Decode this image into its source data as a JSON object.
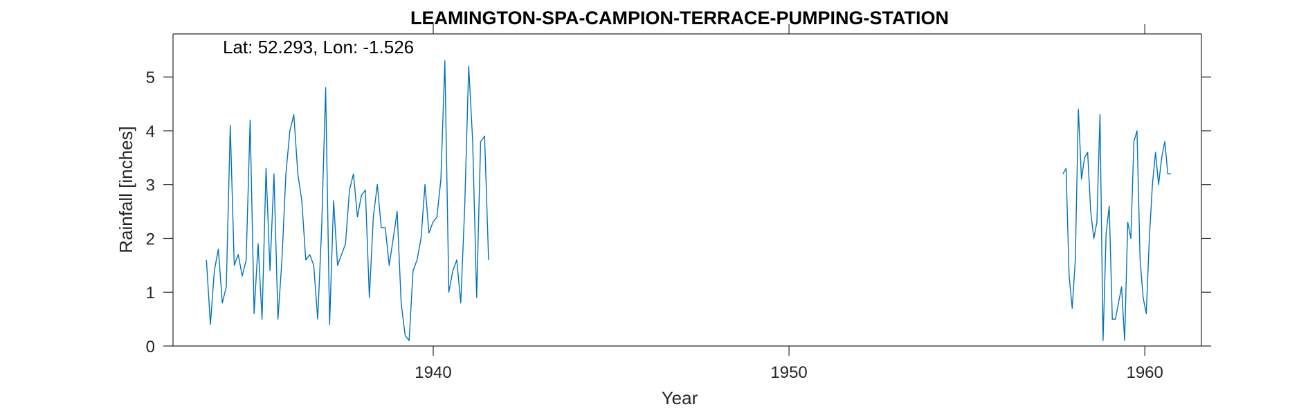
{
  "chart_data": {
    "type": "line",
    "title": "LEAMINGTON-SPA-CAMPION-TERRACE-PUMPING-STATION",
    "annotation": "Lat: 52.293, Lon: -1.526",
    "xlabel": "Year",
    "ylabel": "Rainfall [inches]",
    "xlim": [
      1932.9,
      1961.3
    ],
    "ylim": [
      0,
      5.8
    ],
    "x_ticks": [
      {
        "value": 1940,
        "label": "1940"
      },
      {
        "value": 1950,
        "label": "1950"
      },
      {
        "value": 1960,
        "label": "1960"
      }
    ],
    "y_ticks": [
      {
        "value": 0,
        "label": "0"
      },
      {
        "value": 1,
        "label": "1"
      },
      {
        "value": 2,
        "label": "2"
      },
      {
        "value": 3,
        "label": "3"
      },
      {
        "value": 4,
        "label": "4"
      },
      {
        "value": 5,
        "label": "5"
      }
    ],
    "grid": false,
    "series_color": "#0072BD",
    "series": [
      {
        "segments": [
          {
            "start_year": 1933.625,
            "step": 0.1117,
            "values": [
              1.6,
              0.4,
              1.4,
              1.8,
              0.8,
              1.1,
              4.1,
              1.5,
              1.7,
              1.3,
              1.6,
              4.2,
              0.6,
              1.9,
              0.5,
              3.3,
              1.4,
              3.2,
              0.5,
              1.6,
              3.2,
              4.0,
              4.3,
              3.2,
              2.7,
              1.6,
              1.7,
              1.5,
              0.5,
              2.2,
              4.8,
              0.4,
              2.7,
              1.5,
              1.7,
              1.9,
              2.9,
              3.2,
              2.4,
              2.8,
              2.9,
              0.9,
              2.4,
              3.0,
              2.2,
              2.2,
              1.5,
              2.0,
              2.5,
              0.8,
              0.2,
              0.1,
              1.4,
              1.6,
              2.0,
              3.0,
              2.1,
              2.3,
              2.4,
              3.1,
              5.3,
              1.0,
              1.4,
              1.6,
              0.8,
              2.6,
              5.2,
              3.8,
              0.9,
              3.8,
              3.9,
              1.6
            ]
          },
          {
            "start_year": 1957.7,
            "step": 0.0867,
            "values": [
              3.2,
              3.3,
              1.3,
              0.7,
              1.6,
              4.4,
              3.1,
              3.5,
              3.6,
              2.5,
              2.0,
              2.3,
              4.3,
              0.1,
              2.1,
              2.6,
              0.5,
              0.5,
              0.8,
              1.1,
              0.1,
              2.3,
              2.0,
              3.8,
              4.0,
              1.6,
              0.9,
              0.6,
              2.0,
              3.0,
              3.6,
              3.0,
              3.5,
              3.8,
              3.2,
              3.2
            ]
          }
        ]
      }
    ]
  }
}
